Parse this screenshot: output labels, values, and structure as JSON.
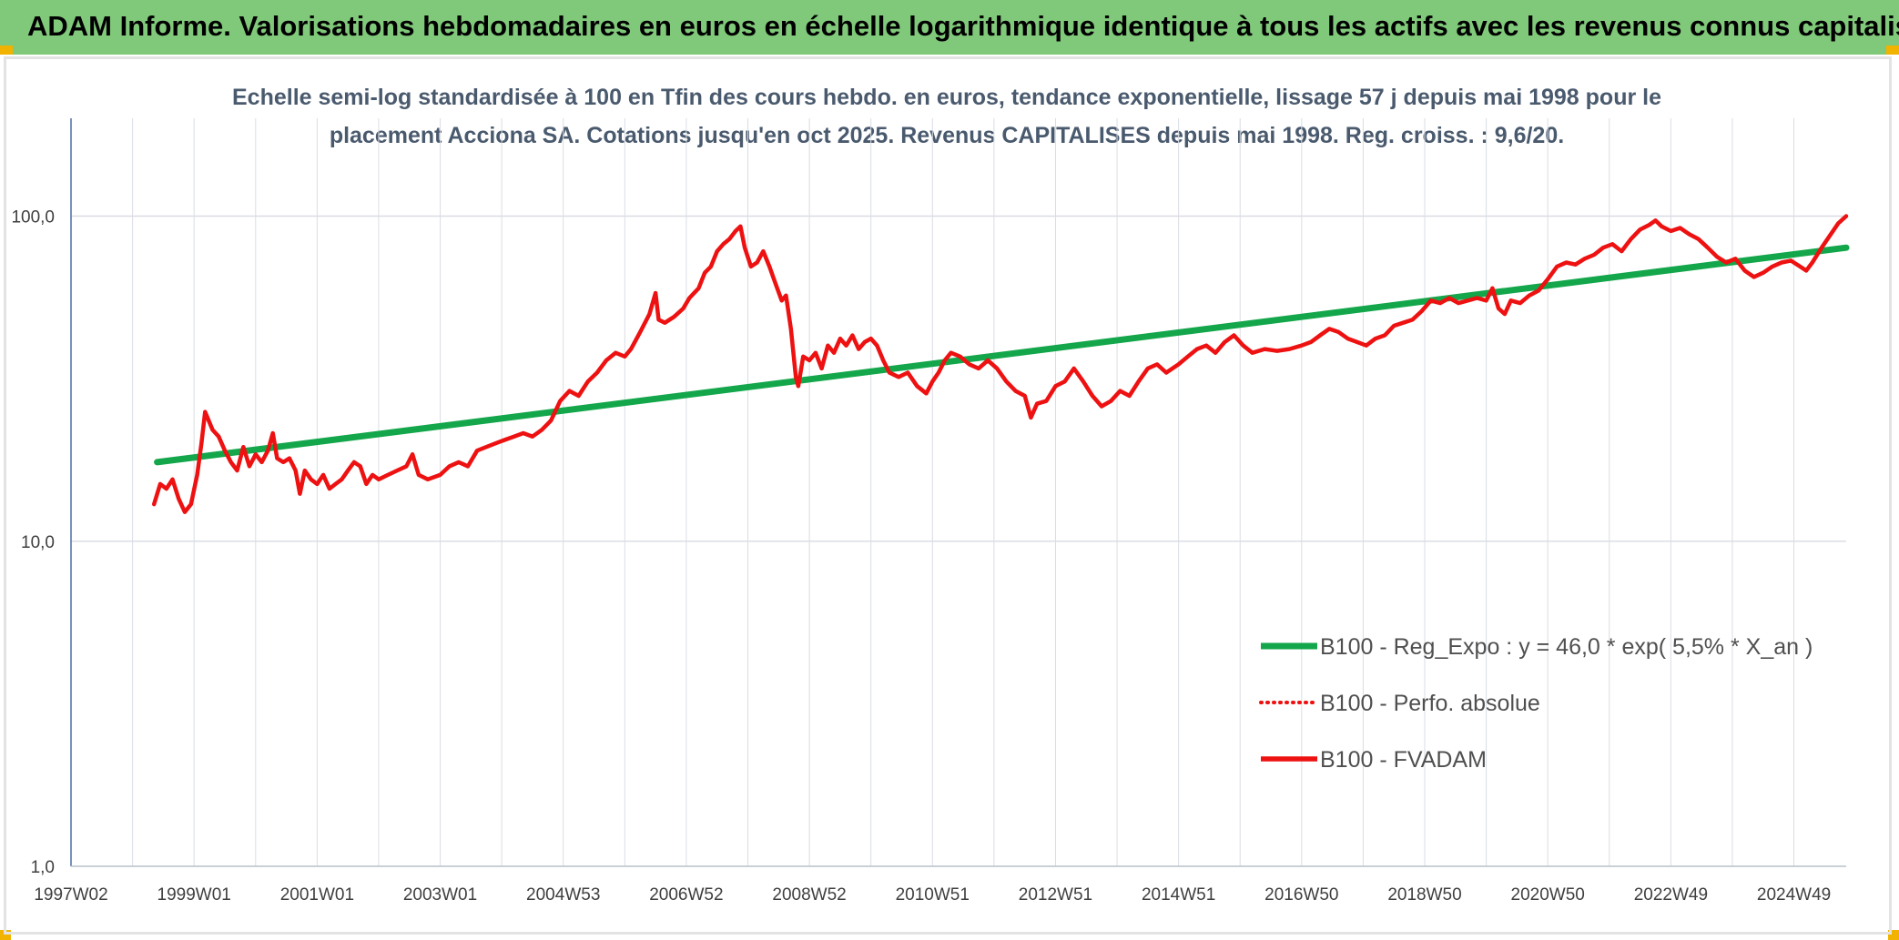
{
  "header": {
    "title": "ADAM Informe. Valorisations hebdomadaires en euros en échelle logarithmique identique à tous les actifs avec les revenus connus capitalisés"
  },
  "colors": {
    "header_bg": "#80c97a",
    "accent_corner": "#f2b200",
    "trend": "#13a64a",
    "fvadam": "#ee1111",
    "perfo": "#ee1111",
    "grid": "#d9dde3",
    "axis": "#4a6fa5"
  },
  "chart_data": {
    "type": "line",
    "subtitle_lines": [
      "Echelle semi-log standardisée à 100 en Tfin des cours hebdo. en euros, tendance exponentielle, lissage 57 j depuis mai 1998 pour le",
      "placement Acciona SA. Cotations jusqu'en oct 2025. Revenus CAPITALISES depuis mai 1998. Reg. croiss. : 9,6/20."
    ],
    "y_scale": "log",
    "ylim": [
      1,
      200
    ],
    "xlim": [
      1997.0,
      2025.85
    ],
    "y_ticks": [
      {
        "value": 100,
        "label": "100,0"
      },
      {
        "value": 10,
        "label": "10,0"
      },
      {
        "value": 1,
        "label": "1,0"
      }
    ],
    "x_ticks": [
      {
        "label": "1997W02",
        "year": 1997.0
      },
      {
        "label": "1999W01",
        "year": 1999.0
      },
      {
        "label": "2001W01",
        "year": 2001.0
      },
      {
        "label": "2003W01",
        "year": 2003.0
      },
      {
        "label": "2004W53",
        "year": 2005.0
      },
      {
        "label": "2006W52",
        "year": 2007.0
      },
      {
        "label": "2008W52",
        "year": 2009.0
      },
      {
        "label": "2010W51",
        "year": 2011.0
      },
      {
        "label": "2012W51",
        "year": 2013.0
      },
      {
        "label": "2014W51",
        "year": 2015.0
      },
      {
        "label": "2016W50",
        "year": 2017.0
      },
      {
        "label": "2018W50",
        "year": 2019.0
      },
      {
        "label": "2020W50",
        "year": 2021.0
      },
      {
        "label": "2022W49",
        "year": 2023.0
      },
      {
        "label": "2024W49",
        "year": 2025.0
      }
    ],
    "grid": true,
    "legend_position": "lower-right",
    "series": [
      {
        "name": "B100 - Reg_Expo : y = 46,0 * exp( 5,5% * X_an )",
        "style": "solid-thick",
        "color": "#13a64a",
        "points": [
          [
            1998.4,
            17.5
          ],
          [
            2025.85,
            80.0
          ]
        ]
      },
      {
        "name": "B100 - Perfo. absolue",
        "style": "dotted",
        "color": "#ee1111",
        "points": []
      },
      {
        "name": "B100 - FVADAM",
        "style": "solid",
        "color": "#ee1111",
        "points": [
          [
            1998.35,
            13.0
          ],
          [
            1998.45,
            15.0
          ],
          [
            1998.55,
            14.5
          ],
          [
            1998.65,
            15.5
          ],
          [
            1998.75,
            13.5
          ],
          [
            1998.85,
            12.3
          ],
          [
            1998.95,
            13.0
          ],
          [
            1999.05,
            16.0
          ],
          [
            1999.12,
            20.0
          ],
          [
            1999.18,
            25.0
          ],
          [
            1999.3,
            22.0
          ],
          [
            1999.4,
            21.0
          ],
          [
            1999.5,
            19.0
          ],
          [
            1999.6,
            17.5
          ],
          [
            1999.7,
            16.5
          ],
          [
            1999.8,
            19.5
          ],
          [
            1999.9,
            17.0
          ],
          [
            2000.0,
            18.5
          ],
          [
            2000.1,
            17.5
          ],
          [
            2000.2,
            19.0
          ],
          [
            2000.28,
            21.5
          ],
          [
            2000.35,
            18.0
          ],
          [
            2000.45,
            17.5
          ],
          [
            2000.55,
            18.0
          ],
          [
            2000.65,
            16.5
          ],
          [
            2000.72,
            14.0
          ],
          [
            2000.8,
            16.5
          ],
          [
            2000.9,
            15.5
          ],
          [
            2001.0,
            15.0
          ],
          [
            2001.1,
            16.0
          ],
          [
            2001.2,
            14.5
          ],
          [
            2001.3,
            15.0
          ],
          [
            2001.4,
            15.5
          ],
          [
            2001.5,
            16.5
          ],
          [
            2001.6,
            17.5
          ],
          [
            2001.7,
            17.0
          ],
          [
            2001.8,
            15.0
          ],
          [
            2001.9,
            16.0
          ],
          [
            2002.0,
            15.5
          ],
          [
            2002.15,
            16.0
          ],
          [
            2002.3,
            16.5
          ],
          [
            2002.45,
            17.0
          ],
          [
            2002.55,
            18.5
          ],
          [
            2002.65,
            16.0
          ],
          [
            2002.8,
            15.5
          ],
          [
            2003.0,
            16.0
          ],
          [
            2003.15,
            17.0
          ],
          [
            2003.3,
            17.5
          ],
          [
            2003.45,
            17.0
          ],
          [
            2003.6,
            19.0
          ],
          [
            2003.75,
            19.5
          ],
          [
            2003.9,
            20.0
          ],
          [
            2004.05,
            20.5
          ],
          [
            2004.2,
            21.0
          ],
          [
            2004.35,
            21.5
          ],
          [
            2004.5,
            21.0
          ],
          [
            2004.65,
            22.0
          ],
          [
            2004.8,
            23.5
          ],
          [
            2004.95,
            27.0
          ],
          [
            2005.1,
            29.0
          ],
          [
            2005.25,
            28.0
          ],
          [
            2005.4,
            31.0
          ],
          [
            2005.55,
            33.0
          ],
          [
            2005.7,
            36.0
          ],
          [
            2005.85,
            38.0
          ],
          [
            2006.0,
            37.0
          ],
          [
            2006.1,
            39.0
          ],
          [
            2006.25,
            44.0
          ],
          [
            2006.4,
            50.0
          ],
          [
            2006.5,
            58.0
          ],
          [
            2006.55,
            48.0
          ],
          [
            2006.65,
            47.0
          ],
          [
            2006.8,
            49.0
          ],
          [
            2006.95,
            52.0
          ],
          [
            2007.05,
            56.0
          ],
          [
            2007.2,
            60.0
          ],
          [
            2007.3,
            67.0
          ],
          [
            2007.4,
            70.0
          ],
          [
            2007.5,
            78.0
          ],
          [
            2007.6,
            82.0
          ],
          [
            2007.7,
            85.0
          ],
          [
            2007.8,
            90.0
          ],
          [
            2007.88,
            93.0
          ],
          [
            2007.95,
            80.0
          ],
          [
            2008.05,
            70.0
          ],
          [
            2008.15,
            72.0
          ],
          [
            2008.25,
            78.0
          ],
          [
            2008.35,
            70.0
          ],
          [
            2008.45,
            62.0
          ],
          [
            2008.55,
            55.0
          ],
          [
            2008.62,
            57.0
          ],
          [
            2008.7,
            45.0
          ],
          [
            2008.78,
            32.0
          ],
          [
            2008.82,
            30.0
          ],
          [
            2008.9,
            37.0
          ],
          [
            2009.0,
            36.0
          ],
          [
            2009.1,
            38.0
          ],
          [
            2009.2,
            34.0
          ],
          [
            2009.3,
            40.0
          ],
          [
            2009.4,
            38.0
          ],
          [
            2009.5,
            42.0
          ],
          [
            2009.6,
            40.0
          ],
          [
            2009.7,
            43.0
          ],
          [
            2009.8,
            39.0
          ],
          [
            2009.9,
            41.0
          ],
          [
            2010.0,
            42.0
          ],
          [
            2010.1,
            40.0
          ],
          [
            2010.2,
            36.0
          ],
          [
            2010.3,
            33.0
          ],
          [
            2010.45,
            32.0
          ],
          [
            2010.6,
            33.0
          ],
          [
            2010.75,
            30.0
          ],
          [
            2010.9,
            28.5
          ],
          [
            2011.0,
            31.0
          ],
          [
            2011.1,
            33.0
          ],
          [
            2011.2,
            36.0
          ],
          [
            2011.3,
            38.0
          ],
          [
            2011.45,
            37.0
          ],
          [
            2011.6,
            35.0
          ],
          [
            2011.75,
            34.0
          ],
          [
            2011.9,
            36.0
          ],
          [
            2012.05,
            34.0
          ],
          [
            2012.2,
            31.0
          ],
          [
            2012.35,
            29.0
          ],
          [
            2012.5,
            28.0
          ],
          [
            2012.6,
            24.0
          ],
          [
            2012.7,
            26.5
          ],
          [
            2012.85,
            27.0
          ],
          [
            2013.0,
            30.0
          ],
          [
            2013.15,
            31.0
          ],
          [
            2013.3,
            34.0
          ],
          [
            2013.45,
            31.0
          ],
          [
            2013.6,
            28.0
          ],
          [
            2013.75,
            26.0
          ],
          [
            2013.9,
            27.0
          ],
          [
            2014.05,
            29.0
          ],
          [
            2014.2,
            28.0
          ],
          [
            2014.35,
            31.0
          ],
          [
            2014.5,
            34.0
          ],
          [
            2014.65,
            35.0
          ],
          [
            2014.8,
            33.0
          ],
          [
            2015.0,
            35.0
          ],
          [
            2015.15,
            37.0
          ],
          [
            2015.3,
            39.0
          ],
          [
            2015.45,
            40.0
          ],
          [
            2015.6,
            38.0
          ],
          [
            2015.75,
            41.0
          ],
          [
            2015.9,
            43.0
          ],
          [
            2016.05,
            40.0
          ],
          [
            2016.2,
            38.0
          ],
          [
            2016.4,
            39.0
          ],
          [
            2016.6,
            38.5
          ],
          [
            2016.8,
            39.0
          ],
          [
            2017.0,
            40.0
          ],
          [
            2017.15,
            41.0
          ],
          [
            2017.3,
            43.0
          ],
          [
            2017.45,
            45.0
          ],
          [
            2017.6,
            44.0
          ],
          [
            2017.75,
            42.0
          ],
          [
            2017.9,
            41.0
          ],
          [
            2018.05,
            40.0
          ],
          [
            2018.2,
            42.0
          ],
          [
            2018.35,
            43.0
          ],
          [
            2018.5,
            46.0
          ],
          [
            2018.65,
            47.0
          ],
          [
            2018.8,
            48.0
          ],
          [
            2018.95,
            51.0
          ],
          [
            2019.1,
            55.0
          ],
          [
            2019.25,
            54.0
          ],
          [
            2019.4,
            56.0
          ],
          [
            2019.55,
            54.0
          ],
          [
            2019.7,
            55.0
          ],
          [
            2019.85,
            56.0
          ],
          [
            2020.0,
            55.0
          ],
          [
            2020.1,
            60.0
          ],
          [
            2020.2,
            52.0
          ],
          [
            2020.3,
            50.0
          ],
          [
            2020.4,
            55.0
          ],
          [
            2020.55,
            54.0
          ],
          [
            2020.7,
            57.0
          ],
          [
            2020.85,
            59.0
          ],
          [
            2021.0,
            64.0
          ],
          [
            2021.15,
            70.0
          ],
          [
            2021.3,
            72.0
          ],
          [
            2021.45,
            71.0
          ],
          [
            2021.6,
            74.0
          ],
          [
            2021.75,
            76.0
          ],
          [
            2021.9,
            80.0
          ],
          [
            2022.05,
            82.0
          ],
          [
            2022.2,
            78.0
          ],
          [
            2022.35,
            85.0
          ],
          [
            2022.5,
            91.0
          ],
          [
            2022.65,
            94.0
          ],
          [
            2022.75,
            97.0
          ],
          [
            2022.85,
            93.0
          ],
          [
            2023.0,
            90.0
          ],
          [
            2023.15,
            92.0
          ],
          [
            2023.3,
            88.0
          ],
          [
            2023.45,
            85.0
          ],
          [
            2023.6,
            80.0
          ],
          [
            2023.75,
            75.0
          ],
          [
            2023.9,
            72.0
          ],
          [
            2024.05,
            74.0
          ],
          [
            2024.2,
            68.0
          ],
          [
            2024.35,
            65.0
          ],
          [
            2024.5,
            67.0
          ],
          [
            2024.65,
            70.0
          ],
          [
            2024.8,
            72.0
          ],
          [
            2024.95,
            73.0
          ],
          [
            2025.1,
            70.0
          ],
          [
            2025.2,
            68.0
          ],
          [
            2025.3,
            72.0
          ],
          [
            2025.45,
            80.0
          ],
          [
            2025.6,
            88.0
          ],
          [
            2025.72,
            95.0
          ],
          [
            2025.85,
            100.0
          ]
        ]
      }
    ]
  }
}
